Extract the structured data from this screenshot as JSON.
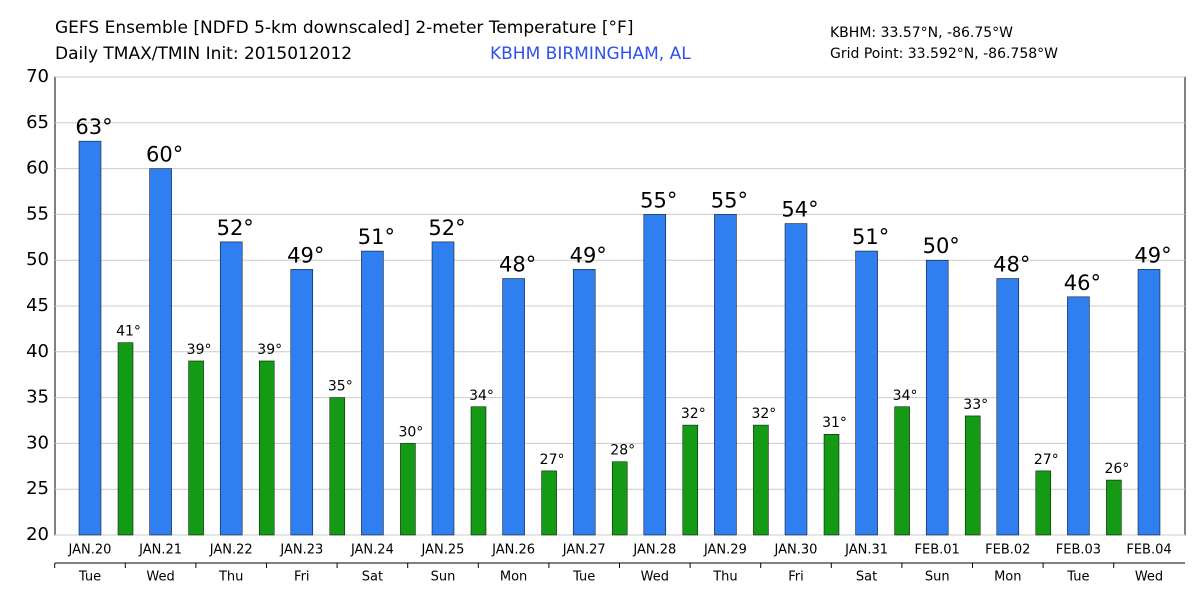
{
  "chart_data": {
    "type": "bar",
    "title": "GEFS Ensemble [NDFD 5-km downscaled] 2-meter Temperature [°F]",
    "subtitle": "Daily TMAX/TMIN Init: 2015012012",
    "station": "KBHM BIRMINGHAM, AL",
    "location": "KBHM: 33.57°N, -86.75°W",
    "grid_point": "Grid Point: 33.592°N, -86.758°W",
    "categories": [
      "JAN.20",
      "JAN.21",
      "JAN.22",
      "JAN.23",
      "JAN.24",
      "JAN.25",
      "JAN.26",
      "JAN.27",
      "JAN.28",
      "JAN.29",
      "JAN.30",
      "JAN.31",
      "FEB.01",
      "FEB.02",
      "FEB.03",
      "FEB.04"
    ],
    "weekdays": [
      "Tue",
      "Wed",
      "Thu",
      "Fri",
      "Sat",
      "Sun",
      "Mon",
      "Tue",
      "Wed",
      "Thu",
      "Fri",
      "Sat",
      "Sun",
      "Mon",
      "Tue",
      "Wed"
    ],
    "series": [
      {
        "color": "#2f7ff0",
        "values": [
          63,
          60,
          52,
          49,
          51,
          52,
          48,
          49,
          55,
          55,
          54,
          51,
          50,
          48,
          46,
          49
        ],
        "value_labels": [
          "63°",
          "60°",
          "52°",
          "49°",
          "51°",
          "52°",
          "48°",
          "49°",
          "55°",
          "55°",
          "54°",
          "51°",
          "50°",
          "48°",
          "46°",
          "49°"
        ]
      },
      {
        "color": "#149a14",
        "values": [
          41,
          39,
          39,
          35,
          30,
          34,
          27,
          28,
          32,
          32,
          31,
          34,
          33,
          27,
          26,
          null
        ],
        "value_labels": [
          "41°",
          "39°",
          "39°",
          "35°",
          "30°",
          "34°",
          "27°",
          "28°",
          "32°",
          "32°",
          "31°",
          "34°",
          "33°",
          "27°",
          "26°",
          null
        ]
      }
    ],
    "ylim": [
      20,
      70
    ],
    "yticks": [
      20,
      25,
      30,
      35,
      40,
      45,
      50,
      55,
      60,
      65,
      70
    ],
    "grid": true
  }
}
